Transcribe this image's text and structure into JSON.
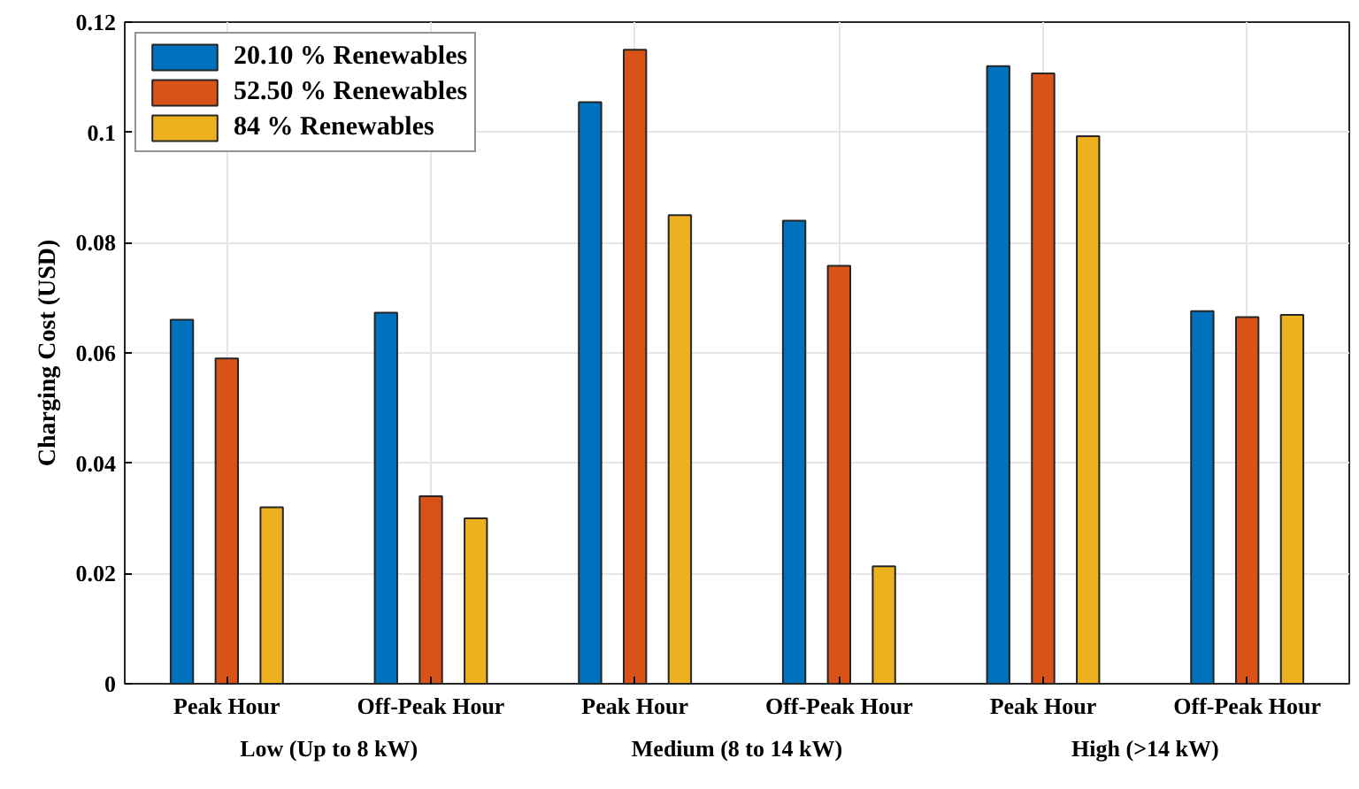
{
  "chart_data": {
    "type": "bar",
    "ylabel": "Charging Cost (USD)",
    "categories": [
      "Peak Hour",
      "Off-Peak Hour",
      "Peak Hour",
      "Off-Peak Hour",
      "Peak Hour",
      "Off-Peak Hour"
    ],
    "annotations": [
      "Low (Up to 8 kW)",
      "Medium (8 to 14 kW)",
      "High (>14 kW)"
    ],
    "series": [
      {
        "name": "20.10 % Renewables",
        "color": "#0072bd",
        "values": [
          0.066,
          0.0673,
          0.1055,
          0.084,
          0.112,
          0.0676
        ]
      },
      {
        "name": "52.50 % Renewables",
        "color": "#d95319",
        "values": [
          0.059,
          0.034,
          0.115,
          0.0758,
          0.1107,
          0.0665
        ]
      },
      {
        "name": "84 % Renewables",
        "color": "#edb120",
        "values": [
          0.032,
          0.03,
          0.085,
          0.0213,
          0.0993,
          0.0669
        ]
      }
    ],
    "ylim": [
      0,
      0.12
    ],
    "yticks": [
      0,
      0.02,
      0.04,
      0.06,
      0.08,
      0.1,
      0.12
    ],
    "grid": true,
    "legend": "top left"
  }
}
